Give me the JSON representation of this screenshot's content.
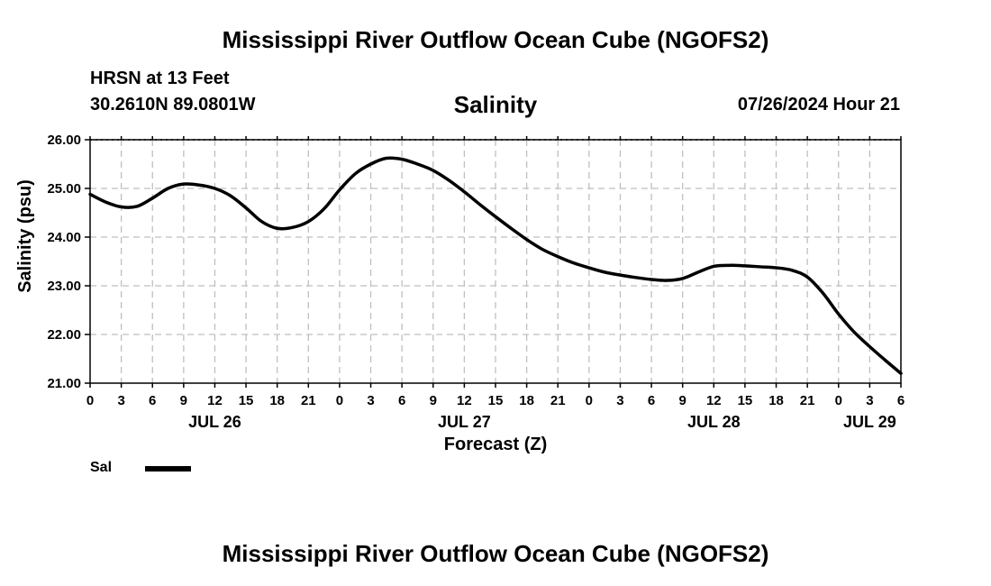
{
  "header": {
    "title": "Mississippi River Outflow Ocean Cube (NGOFS2)",
    "station": "HRSN at 13 Feet",
    "coords": "30.2610N  89.0801W",
    "chart_title": "Salinity",
    "datetime": "07/26/2024 Hour 21"
  },
  "legend": {
    "label": "Sal"
  },
  "footer": {
    "title": "Mississippi River Outflow Ocean Cube (NGOFS2)"
  },
  "colors": {
    "line": "#000000",
    "grid": "#bfbfbf",
    "background": "#ffffff"
  },
  "chart_data": {
    "type": "line",
    "title": "Salinity",
    "xlabel": "Forecast (Z)",
    "ylabel": "Salinity (psu)",
    "xlim": [
      0,
      78
    ],
    "ylim": [
      21,
      26
    ],
    "y_ticks": [
      21,
      22,
      23,
      24,
      25,
      26
    ],
    "y_tick_labels": [
      "21.00",
      "22.00",
      "23.00",
      "24.00",
      "25.00",
      "26.00"
    ],
    "x_ticks": [
      0,
      3,
      6,
      9,
      12,
      15,
      18,
      21,
      24,
      27,
      30,
      33,
      36,
      39,
      42,
      45,
      48,
      51,
      54,
      57,
      60,
      63,
      66,
      69,
      72,
      75,
      78
    ],
    "x_tick_labels": [
      "0",
      "3",
      "6",
      "9",
      "12",
      "15",
      "18",
      "21",
      "0",
      "3",
      "6",
      "9",
      "12",
      "15",
      "18",
      "21",
      "0",
      "3",
      "6",
      "9",
      "12",
      "15",
      "18",
      "21",
      "0",
      "3",
      "6"
    ],
    "date_labels": [
      {
        "x": 12,
        "label": "JUL 26"
      },
      {
        "x": 36,
        "label": "JUL 27"
      },
      {
        "x": 60,
        "label": "JUL 28"
      },
      {
        "x": 75,
        "label": "JUL 29"
      }
    ],
    "grid": true,
    "legend_position": "bottom-left",
    "series": [
      {
        "name": "Sal",
        "x": [
          0,
          1.5,
          3,
          4.5,
          6,
          7.5,
          9,
          10.5,
          12,
          13.5,
          15,
          16.5,
          18,
          19.5,
          21,
          22.5,
          24,
          25.5,
          27,
          28.5,
          30,
          31.5,
          33,
          34.5,
          36,
          37.5,
          39,
          40.5,
          42,
          43.5,
          45,
          46.5,
          48,
          49.5,
          51,
          52.5,
          54,
          55.5,
          57,
          58.5,
          60,
          61.5,
          63,
          64.5,
          66,
          67.5,
          69,
          70.5,
          72,
          73.5,
          75,
          76.5,
          78
        ],
        "values": [
          24.88,
          24.72,
          24.62,
          24.63,
          24.8,
          25.0,
          25.09,
          25.07,
          25.0,
          24.85,
          24.6,
          24.32,
          24.18,
          24.2,
          24.32,
          24.58,
          24.97,
          25.3,
          25.5,
          25.62,
          25.6,
          25.5,
          25.37,
          25.17,
          24.93,
          24.67,
          24.42,
          24.18,
          23.95,
          23.75,
          23.6,
          23.47,
          23.37,
          23.28,
          23.22,
          23.17,
          23.13,
          23.11,
          23.15,
          23.28,
          23.4,
          23.42,
          23.41,
          23.39,
          23.37,
          23.32,
          23.18,
          22.85,
          22.42,
          22.05,
          21.75,
          21.47,
          21.2
        ]
      }
    ]
  }
}
